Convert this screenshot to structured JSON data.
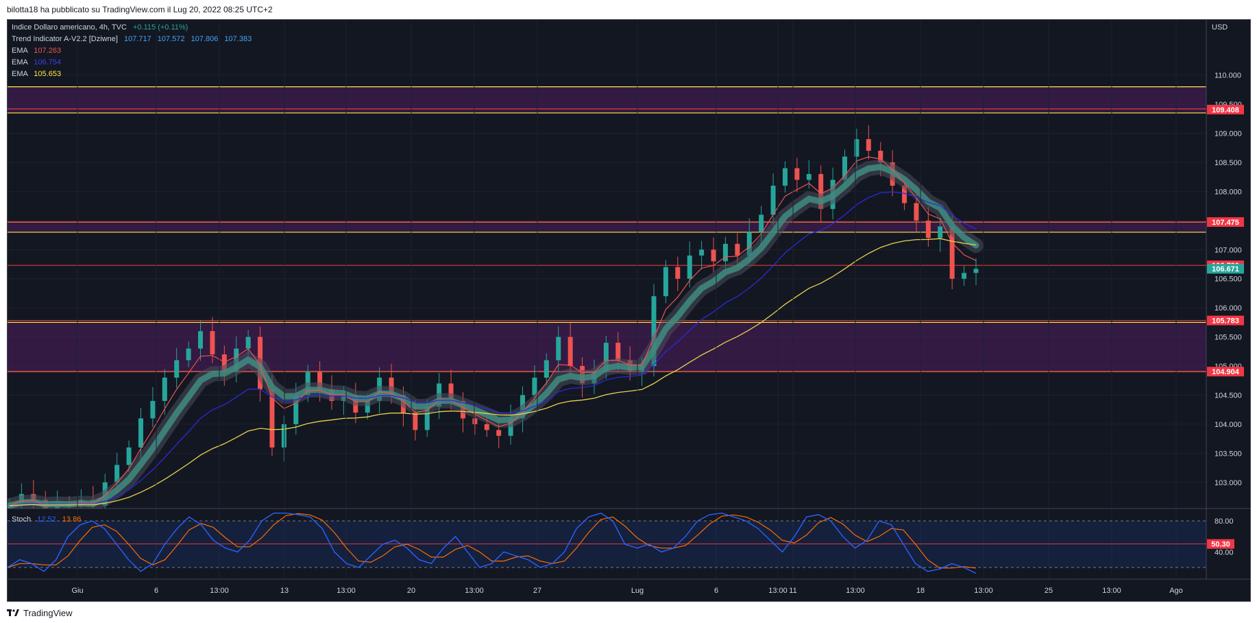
{
  "header": {
    "attribution": "bilotta18 ha pubblicato su TradingView.com il Lug 20, 2022 08:25 UTC+2"
  },
  "footer": {
    "brand": "TradingView"
  },
  "legend": {
    "symbol": "Indice Dollaro americano, 4h, TVC",
    "change": "+0.115 (+0.11%)",
    "trend_name": "Trend Indicator A-V2.2 [Dziwne]",
    "trend_values": [
      "107.717",
      "107.572",
      "107.806",
      "107.383"
    ],
    "ema1_label": "EMA",
    "ema1_value": "107.263",
    "ema2_label": "EMA",
    "ema2_value": "106.754",
    "ema3_label": "EMA",
    "ema3_value": "105.653"
  },
  "stoch_legend": {
    "label": "Stoch",
    "k": "12.52",
    "d": "13.86"
  },
  "axis_unit": "USD",
  "colors": {
    "up": "#26a69a",
    "down": "#ef5350",
    "ema_fast": "#ef5350",
    "ema_mid": "#2b2bd9",
    "ema_slow": "#e8d44d",
    "zone": "#5b1f6a",
    "hline_red": "#e03a3a",
    "hline_yellow": "#ffe94d",
    "stoch_k": "#2962ff",
    "stoch_d": "#ff6d00"
  },
  "chart_data": [
    {
      "type": "candlestick",
      "title": "Indice Dollaro americano, 4h, TVC",
      "ylabel": "USD",
      "ylim": [
        102.55,
        110.95
      ],
      "y_ticks": [
        "110.000",
        "109.500",
        "109.000",
        "108.500",
        "108.000",
        "107.000",
        "106.500",
        "106.000",
        "105.500",
        "105.000",
        "104.500",
        "104.000",
        "103.500",
        "103.000"
      ],
      "x_ticks": [
        "Giu",
        "6",
        "13:00",
        "13",
        "13:00",
        "20",
        "13:00",
        "27",
        "Lug",
        "6",
        "13:00",
        "11",
        "13:00",
        "18",
        "13:00",
        "25",
        "13:00",
        "Ago"
      ],
      "price_labels": [
        {
          "value": 109.408,
          "text": "109.408",
          "color": "#f23645"
        },
        {
          "value": 107.475,
          "text": "107.475",
          "color": "#f23645"
        },
        {
          "value": 106.73,
          "text": "106.730",
          "color": "#f23645"
        },
        {
          "value": 106.671,
          "text": "106.671",
          "color": "#26a69a"
        },
        {
          "value": 105.783,
          "text": "105.783",
          "color": "#f23645"
        },
        {
          "value": 104.904,
          "text": "104.904",
          "color": "#f23645"
        }
      ],
      "zones": [
        {
          "from": 109.35,
          "to": 109.8
        },
        {
          "from": 107.3,
          "to": 107.475
        },
        {
          "from": 104.904,
          "to": 105.75
        }
      ],
      "horizontal_lines": [
        {
          "value": 109.8,
          "color": "yellow"
        },
        {
          "value": 109.35,
          "color": "yellow"
        },
        {
          "value": 109.42,
          "color": "red"
        },
        {
          "value": 107.475,
          "color": "yellow"
        },
        {
          "value": 107.48,
          "color": "red"
        },
        {
          "value": 107.3,
          "color": "yellow"
        },
        {
          "value": 106.73,
          "color": "red"
        },
        {
          "value": 105.783,
          "color": "red"
        },
        {
          "value": 105.75,
          "color": "yellow"
        },
        {
          "value": 104.904,
          "color": "yellow"
        },
        {
          "value": 104.9,
          "color": "red"
        }
      ],
      "close_path": [
        102.6,
        102.8,
        102.7,
        102.5,
        102.65,
        102.6,
        102.7,
        102.6,
        103.0,
        103.3,
        103.6,
        104.1,
        104.4,
        104.8,
        105.1,
        105.3,
        105.6,
        105.2,
        104.9,
        105.3,
        105.5,
        104.6,
        103.6,
        104.0,
        104.5,
        104.9,
        104.6,
        104.4,
        104.5,
        104.2,
        104.4,
        104.8,
        104.5,
        104.2,
        103.9,
        104.3,
        104.7,
        104.4,
        104.1,
        104.0,
        103.9,
        103.8,
        104.1,
        104.5,
        104.8,
        105.1,
        105.5,
        105.0,
        104.7,
        104.9,
        105.4,
        105.1,
        104.9,
        105.0,
        106.2,
        106.7,
        106.5,
        106.9,
        107.0,
        106.8,
        107.1,
        106.9,
        107.3,
        107.6,
        108.1,
        108.4,
        108.2,
        108.3,
        107.7,
        108.2,
        108.6,
        108.9,
        108.7,
        108.5,
        108.1,
        107.8,
        107.5,
        107.2,
        107.4,
        106.5,
        106.6,
        106.67
      ],
      "series": [
        {
          "name": "EMA",
          "value": 107.263,
          "color": "red"
        },
        {
          "name": "EMA",
          "value": 106.754,
          "color": "blue"
        },
        {
          "name": "EMA",
          "value": 105.653,
          "color": "yellow"
        }
      ]
    },
    {
      "type": "line",
      "title": "Stoch",
      "ylim": [
        5,
        95
      ],
      "y_ticks": [
        "80.00",
        "40.00"
      ],
      "levels": [
        80,
        50.3,
        20
      ],
      "level_label": "50.30",
      "series": [
        {
          "name": "%K",
          "last": 12.52
        },
        {
          "name": "%D",
          "last": 13.86
        }
      ],
      "k_path": [
        20,
        30,
        25,
        15,
        30,
        60,
        75,
        80,
        70,
        50,
        30,
        15,
        25,
        50,
        70,
        85,
        75,
        55,
        45,
        40,
        55,
        80,
        90,
        90,
        88,
        85,
        70,
        40,
        25,
        20,
        35,
        50,
        55,
        45,
        30,
        25,
        45,
        60,
        40,
        20,
        25,
        40,
        35,
        30,
        20,
        25,
        40,
        70,
        85,
        90,
        80,
        50,
        45,
        50,
        40,
        45,
        60,
        80,
        88,
        90,
        85,
        80,
        70,
        55,
        40,
        60,
        85,
        88,
        80,
        60,
        45,
        55,
        80,
        75,
        50,
        25,
        15,
        18,
        25,
        20,
        12.52
      ]
    }
  ]
}
